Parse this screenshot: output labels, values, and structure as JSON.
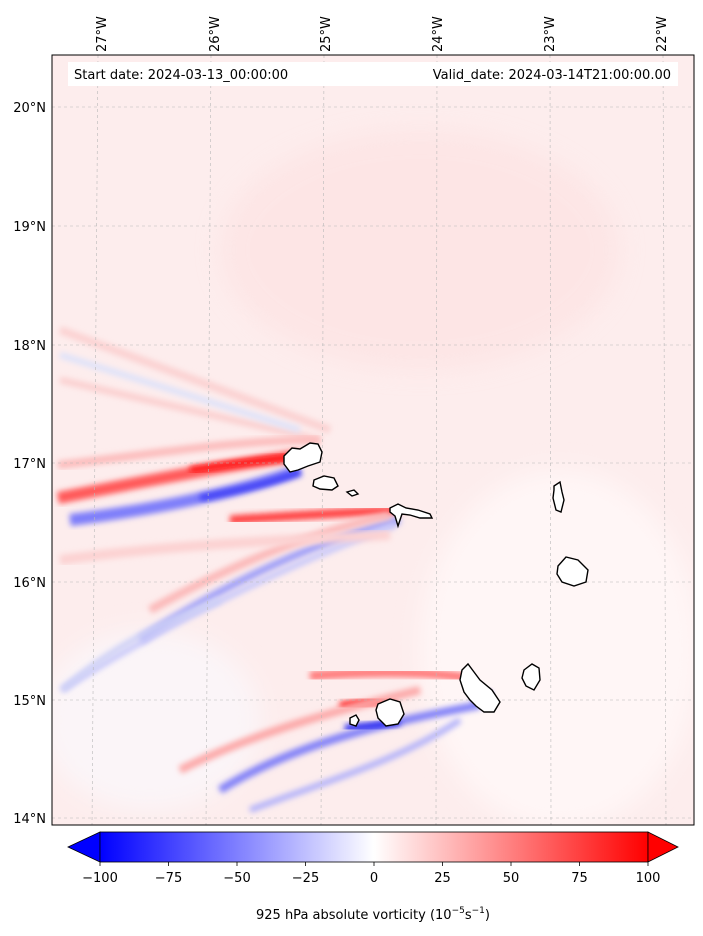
{
  "map": {
    "start_label": "Start date: 2024-03-13_00:00:00",
    "valid_label": "Valid_date: 2024-03-14T21:00:00.00",
    "lon_ticks": [
      "27°W",
      "26°W",
      "25°W",
      "24°W",
      "23°W",
      "22°W"
    ],
    "lat_ticks": [
      "14°N",
      "15°N",
      "16°N",
      "17°N",
      "18°N",
      "19°N",
      "20°N"
    ],
    "colorbar": {
      "min": -100,
      "max": 100,
      "ticks": [
        "−100",
        "−75",
        "−50",
        "−25",
        "0",
        "25",
        "50",
        "75",
        "100"
      ],
      "label_main": "925 hPa absolute vorticity (10",
      "label_exp1": "−5",
      "label_mid": "s",
      "label_exp2": "−1",
      "label_end": ")",
      "colors": {
        "neg": "#0000ff",
        "mid": "#ffffff",
        "pos": "#ff0000"
      }
    }
  }
}
